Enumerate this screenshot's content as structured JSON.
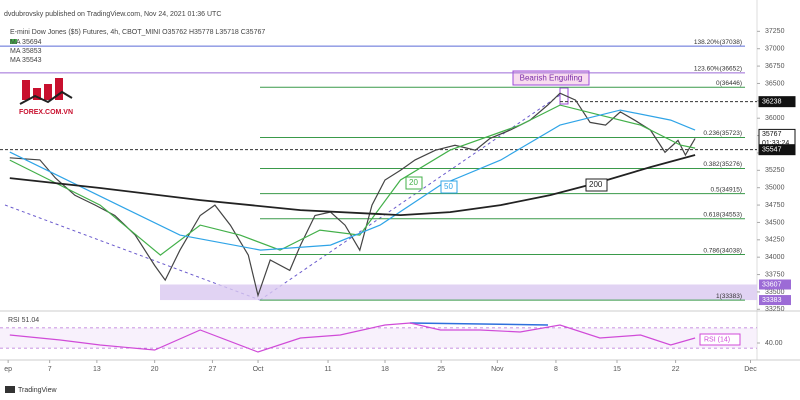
{
  "logo": "FOREX.COM.VN",
  "footer": "TradingView",
  "chart_data": [
    {
      "type": "line",
      "publisher": "dvdubrovsky published on TradingView.com, Nov 24, 2021 01:36 UTC",
      "title": "E-mini Dow Jones ($5) Futures, 4h, CBOT_MINI  O35762 H35778 L35718 C35767",
      "ma_legend": [
        "MA 35694",
        "MA 35853",
        "MA 35543"
      ],
      "annotation": "Bearish Engulfing",
      "countdown": "01:33:24",
      "xlim": [
        0,
        93
      ],
      "ylim": [
        33240,
        37557
      ],
      "yticks": [
        33250,
        33500,
        33750,
        34000,
        34250,
        34500,
        34750,
        35000,
        35250,
        35500,
        35750,
        36000,
        36250,
        36500,
        36750,
        37000,
        37250
      ],
      "levels": [
        {
          "value": 37038,
          "label": "138.20%(37038)",
          "color": "#5b6bd6"
        },
        {
          "value": 36652,
          "label": "123.60%(36652)",
          "color": "#9c6bd6"
        },
        {
          "value": 36446,
          "label": "0(36446)",
          "color": "#3a9a4a"
        },
        {
          "value": 35723,
          "label": "0.236(35723)",
          "color": "#3a9a4a"
        },
        {
          "value": 35276,
          "label": "0.382(35276)",
          "color": "#3a9a4a"
        },
        {
          "value": 34915,
          "label": "0.5(34915)",
          "color": "#3a9a4a"
        },
        {
          "value": 34553,
          "label": "0.618(34553)",
          "color": "#3a9a4a"
        },
        {
          "value": 34038,
          "label": "0.786(34038)",
          "color": "#3a9a4a"
        },
        {
          "value": 33383,
          "label": "1(33383)",
          "color": "#3a9a4a"
        }
      ],
      "price_labels": [
        36238,
        35767,
        35547
      ],
      "zone": [
        33383,
        33607
      ],
      "series": [
        {
          "color": "#444444",
          "x": [
            1.2,
            4.9,
            6.8,
            9.2,
            11.7,
            14.1,
            16.6,
            19.0,
            20.3,
            22.1,
            24.6,
            26.4,
            28.3,
            30.5,
            31.7,
            33.2,
            35.6,
            36.9,
            38.7,
            40.6,
            42.4,
            44.2,
            45.7,
            47.3,
            49.2,
            51.0,
            53.5,
            55.9,
            58.4,
            60.2,
            62.7,
            65.1,
            67.3,
            68.8,
            70.7,
            72.5,
            74.4,
            76.2,
            78.0,
            79.9,
            81.7,
            83.3,
            84.2,
            85.4
          ],
          "values": [
            35430,
            35400,
            35140,
            34890,
            34750,
            34600,
            34320,
            33880,
            33670,
            34100,
            34600,
            34750,
            34460,
            34030,
            33450,
            33960,
            33810,
            34170,
            34600,
            34650,
            34460,
            34100,
            34750,
            35110,
            35250,
            35400,
            35540,
            35610,
            35540,
            35710,
            35830,
            35970,
            36190,
            36360,
            36260,
            35940,
            35900,
            36090,
            35970,
            35830,
            35510,
            35680,
            35470,
            35710
          ]
        },
        {
          "name": "20",
          "color": "#43b04a",
          "x": [
            1.2,
            12.3,
            19.7,
            24.6,
            29.5,
            34.4,
            39.3,
            44.2,
            49.2,
            55.3,
            63.9,
            68.8,
            73.7,
            78.7,
            83.6,
            85.4
          ],
          "values": [
            35397,
            34750,
            34030,
            34462,
            34318,
            34102,
            34390,
            34318,
            35110,
            35541,
            35901,
            36189,
            36045,
            35901,
            35613,
            35570
          ]
        },
        {
          "name": "50",
          "color": "#2fa4e7",
          "x": [
            1.2,
            22.1,
            32.0,
            40.6,
            46.7,
            54.1,
            61.5,
            68.8,
            76.2,
            82.4,
            85.4
          ],
          "values": [
            35512,
            34318,
            34102,
            34174,
            34462,
            35038,
            35397,
            35901,
            36117,
            35973,
            35829
          ]
        },
        {
          "name": "200",
          "color": "#222222",
          "x": [
            1.2,
            12.3,
            24.6,
            36.9,
            49.2,
            55.3,
            61.5,
            67.6,
            73.7,
            79.9,
            85.4
          ],
          "values": [
            35138,
            34995,
            34822,
            34678,
            34606,
            34649,
            34750,
            34894,
            35081,
            35297,
            35470
          ]
        }
      ]
    },
    {
      "type": "line",
      "title": "RSI 51.04",
      "legend": "RSI (14)",
      "xlim": [
        0,
        93
      ],
      "ylim": [
        10,
        100
      ],
      "yticks": [
        {
          "value": 40,
          "label": "40.00"
        }
      ],
      "bands": [
        30,
        70
      ],
      "xticks": [
        {
          "value": 1.0,
          "label": "ep"
        },
        {
          "value": 6.1,
          "label": "7"
        },
        {
          "value": 11.9,
          "label": "13"
        },
        {
          "value": 19.0,
          "label": "20"
        },
        {
          "value": 26.1,
          "label": "27"
        },
        {
          "value": 31.7,
          "label": "Oct"
        },
        {
          "value": 40.3,
          "label": "11"
        },
        {
          "value": 47.3,
          "label": "18"
        },
        {
          "value": 54.2,
          "label": "25"
        },
        {
          "value": 61.1,
          "label": "Nov"
        },
        {
          "value": 68.3,
          "label": "8"
        },
        {
          "value": 75.8,
          "label": "15"
        },
        {
          "value": 83.0,
          "label": "22"
        },
        {
          "value": 92.2,
          "label": "Dec"
        }
      ],
      "series": [
        {
          "color": "#d04bd8",
          "x": [
            1.2,
            7.4,
            12.3,
            19.0,
            24.6,
            31.7,
            36.9,
            41.8,
            47.3,
            50.4,
            54.1,
            59.0,
            63.9,
            68.8,
            73.7,
            78.7,
            82.4,
            85.4
          ],
          "values": [
            56,
            46,
            36,
            26,
            66,
            22,
            50,
            56,
            76,
            80,
            66,
            66,
            62,
            76,
            50,
            56,
            36,
            50
          ]
        }
      ]
    }
  ]
}
